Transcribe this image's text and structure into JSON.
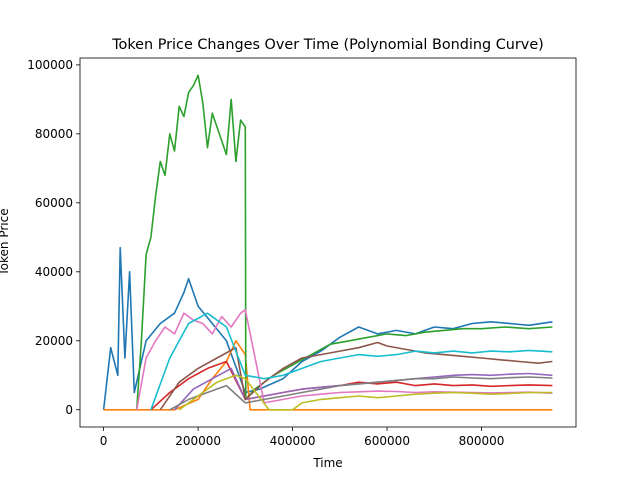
{
  "chart_data": {
    "type": "line",
    "title": "Token Price Changes Over Time (Polynomial Bonding Curve)",
    "xlabel": "Time",
    "ylabel": "Token Price",
    "xlim": [
      -50000,
      1000000
    ],
    "ylim": [
      -5000,
      102000
    ],
    "xticks": [
      0,
      200000,
      400000,
      600000,
      800000
    ],
    "yticks": [
      0,
      20000,
      40000,
      60000,
      80000,
      100000
    ],
    "grid": false,
    "legend": "none",
    "series": [
      {
        "color": "#1f77b4",
        "x": [
          0,
          15000,
          30000,
          35000,
          45000,
          55000,
          65000,
          90000,
          120000,
          150000,
          170000,
          180000,
          200000,
          230000,
          260000,
          300000,
          330000,
          380000,
          420000,
          460000,
          500000,
          540000,
          580000,
          620000,
          660000,
          700000,
          740000,
          780000,
          820000,
          860000,
          900000,
          950000
        ],
        "y": [
          0,
          18000,
          10000,
          47000,
          15000,
          40000,
          5000,
          20000,
          25000,
          28000,
          34000,
          38000,
          30000,
          25000,
          20000,
          5000,
          6000,
          9000,
          14000,
          17000,
          21000,
          24000,
          22000,
          23000,
          22000,
          24000,
          23500,
          25000,
          25500,
          25000,
          24500,
          25500
        ]
      },
      {
        "color": "#ff7f0e",
        "x": [
          0,
          50000,
          100000,
          150000,
          200000,
          230000,
          260000,
          280000,
          300000,
          310000,
          350000,
          400000,
          450000,
          500000,
          550000,
          600000,
          650000,
          700000,
          750000,
          800000,
          850000,
          900000,
          950000
        ],
        "y": [
          0,
          0,
          0,
          0,
          3000,
          9000,
          14000,
          20000,
          16000,
          0,
          0,
          0,
          0,
          0,
          0,
          0,
          0,
          0,
          0,
          0,
          0,
          0,
          0
        ]
      },
      {
        "color": "#2ca02c",
        "x": [
          70000,
          80000,
          90000,
          100000,
          110000,
          120000,
          130000,
          140000,
          150000,
          160000,
          170000,
          180000,
          190000,
          200000,
          210000,
          220000,
          230000,
          240000,
          250000,
          260000,
          270000,
          280000,
          290000,
          300000,
          301000,
          320000,
          360000,
          400000,
          440000,
          480000,
          520000,
          560000,
          600000,
          640000,
          680000,
          720000,
          760000,
          800000,
          850000,
          900000,
          950000
        ],
        "y": [
          0,
          20000,
          45000,
          50000,
          62000,
          72000,
          68000,
          80000,
          75000,
          88000,
          85000,
          92000,
          94000,
          97000,
          89000,
          76000,
          86000,
          82000,
          78000,
          74000,
          90000,
          72000,
          84000,
          82000,
          3000,
          6000,
          10000,
          13000,
          16000,
          19000,
          20000,
          21000,
          22000,
          21500,
          22500,
          23000,
          23500,
          23500,
          24000,
          23500,
          24000
        ]
      },
      {
        "color": "#d62728",
        "x": [
          100000,
          140000,
          180000,
          220000,
          260000,
          300000,
          340000,
          380000,
          420000,
          460000,
          500000,
          540000,
          580000,
          620000,
          660000,
          700000,
          740000,
          780000,
          820000,
          860000,
          900000,
          950000
        ],
        "y": [
          0,
          5000,
          9000,
          12000,
          14000,
          3000,
          4000,
          5000,
          6000,
          6500,
          7000,
          8000,
          7500,
          8000,
          7000,
          7500,
          7000,
          7200,
          6800,
          7000,
          7200,
          7000
        ]
      },
      {
        "color": "#9467bd",
        "x": [
          150000,
          190000,
          230000,
          270000,
          300000,
          340000,
          380000,
          420000,
          460000,
          500000,
          540000,
          580000,
          620000,
          660000,
          700000,
          740000,
          780000,
          820000,
          860000,
          900000,
          950000
        ],
        "y": [
          0,
          6000,
          9000,
          12000,
          3000,
          4000,
          5000,
          6000,
          6500,
          7000,
          7500,
          8000,
          8500,
          9000,
          9500,
          10000,
          10200,
          10000,
          10300,
          10500,
          10000
        ]
      },
      {
        "color": "#8c564b",
        "x": [
          120000,
          160000,
          200000,
          240000,
          280000,
          300000,
          340000,
          380000,
          420000,
          460000,
          500000,
          540000,
          580000,
          600000,
          640000,
          680000,
          720000,
          760000,
          800000,
          840000,
          880000,
          920000,
          950000
        ],
        "y": [
          0,
          8000,
          12000,
          15000,
          18000,
          3000,
          8000,
          12000,
          15000,
          16000,
          17000,
          18000,
          19500,
          18500,
          17500,
          16500,
          16000,
          15500,
          15000,
          14500,
          14000,
          13500,
          14000
        ]
      },
      {
        "color": "#e377c2",
        "x": [
          70000,
          90000,
          110000,
          130000,
          150000,
          170000,
          190000,
          210000,
          230000,
          250000,
          270000,
          290000,
          300000,
          340000,
          380000,
          420000,
          460000,
          500000,
          540000,
          580000,
          620000,
          660000,
          700000,
          740000,
          780000,
          820000,
          860000,
          900000,
          950000
        ],
        "y": [
          0,
          15000,
          20000,
          24000,
          22000,
          28000,
          26000,
          25000,
          22000,
          27000,
          24000,
          28000,
          29000,
          2000,
          3000,
          4000,
          4500,
          5000,
          5200,
          5400,
          5300,
          5000,
          5200,
          5100,
          5000,
          4900,
          5000,
          5100,
          4800
        ]
      },
      {
        "color": "#7f7f7f",
        "x": [
          140000,
          180000,
          220000,
          260000,
          300000,
          340000,
          380000,
          420000,
          460000,
          500000,
          540000,
          580000,
          620000,
          660000,
          700000,
          740000,
          780000,
          820000,
          860000,
          900000,
          950000
        ],
        "y": [
          0,
          3000,
          5000,
          7000,
          2000,
          3000,
          4000,
          5000,
          6000,
          7000,
          7500,
          8000,
          8500,
          9000,
          9000,
          9500,
          9200,
          9000,
          9300,
          9500,
          9200
        ]
      },
      {
        "color": "#bcbd22",
        "x": [
          160000,
          200000,
          240000,
          280000,
          300000,
          350000,
          400000,
          420000,
          460000,
          500000,
          540000,
          580000,
          620000,
          660000,
          700000,
          740000,
          780000,
          820000,
          860000,
          900000,
          950000
        ],
        "y": [
          0,
          4000,
          8000,
          10000,
          9000,
          0,
          0,
          2000,
          3000,
          3500,
          4000,
          3500,
          4000,
          4500,
          4800,
          5000,
          4800,
          4500,
          4700,
          5000,
          5000
        ]
      },
      {
        "color": "#17becf",
        "x": [
          100000,
          140000,
          180000,
          220000,
          260000,
          300000,
          340000,
          380000,
          420000,
          460000,
          500000,
          540000,
          580000,
          620000,
          660000,
          700000,
          740000,
          780000,
          820000,
          860000,
          900000,
          950000
        ],
        "y": [
          0,
          15000,
          25000,
          28000,
          24000,
          10000,
          9000,
          10000,
          12000,
          14000,
          15000,
          16000,
          15500,
          16000,
          17000,
          16500,
          17000,
          16500,
          17000,
          16800,
          17200,
          16800
        ]
      }
    ]
  }
}
